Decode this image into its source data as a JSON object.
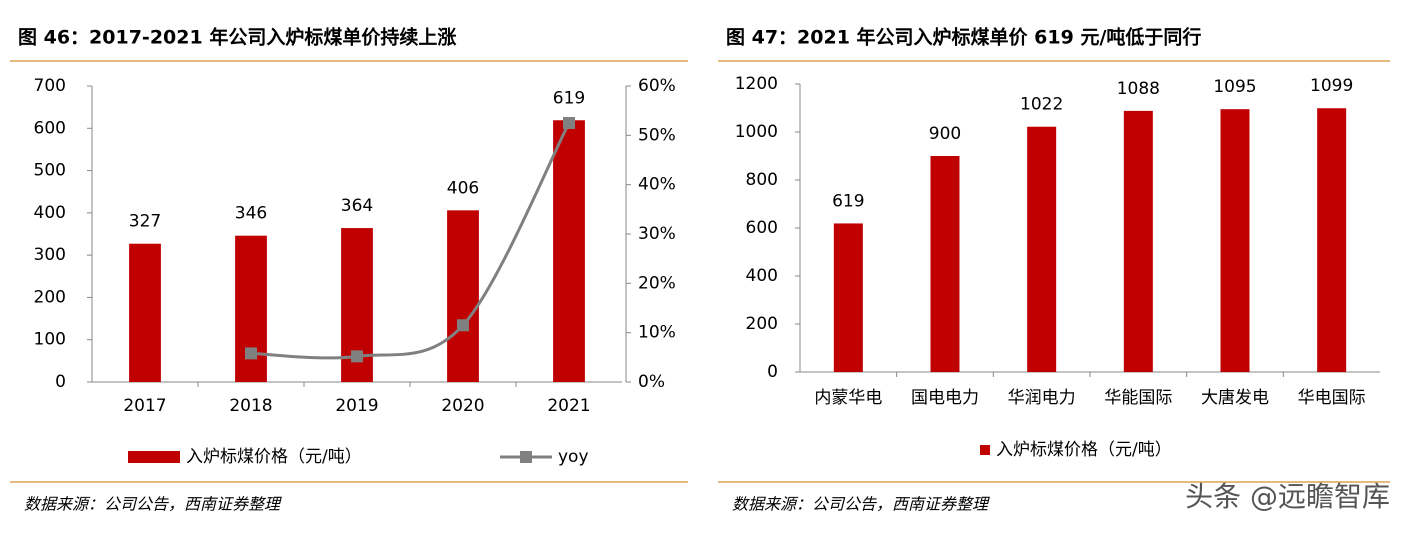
{
  "chart_data": [
    {
      "type": "combo",
      "title": "图 46：2017-2021 年公司入炉标煤单价持续上涨",
      "categories": [
        "2017",
        "2018",
        "2019",
        "2020",
        "2021"
      ],
      "series": [
        {
          "name": "入炉标煤价格（元/吨）",
          "type": "bar",
          "color": "#c00000",
          "values": [
            327,
            346,
            364,
            406,
            619
          ]
        },
        {
          "name": "yoy",
          "type": "line",
          "axis": "y2",
          "color": "#808080",
          "values": [
            null,
            5.8,
            5.2,
            11.5,
            52.5
          ]
        }
      ],
      "ylim": [
        0,
        700
      ],
      "yticks": [
        0,
        100,
        200,
        300,
        400,
        500,
        600,
        700
      ],
      "y2lim": [
        0,
        60
      ],
      "y2ticks": [
        {
          "value": 0,
          "label": "0%"
        },
        {
          "value": 10,
          "label": "10%"
        },
        {
          "value": 20,
          "label": "20%"
        },
        {
          "value": 30,
          "label": "30%"
        },
        {
          "value": 40,
          "label": "40%"
        },
        {
          "value": 50,
          "label": "50%"
        },
        {
          "value": 60,
          "label": "60%"
        }
      ],
      "source": "数据来源：公司公告，西南证券整理"
    },
    {
      "type": "bar",
      "title": "图 47：2021 年公司入炉标煤单价 619 元/吨低于同行",
      "categories": [
        "内蒙华电",
        "国电电力",
        "华润电力",
        "华能国际",
        "大唐发电",
        "华电国际"
      ],
      "series": [
        {
          "name": "入炉标煤价格（元/吨）",
          "type": "bar",
          "color": "#c00000",
          "values": [
            619,
            900,
            1022,
            1088,
            1095,
            1099
          ]
        }
      ],
      "ylim": [
        0,
        1200
      ],
      "yticks": [
        0,
        200,
        400,
        600,
        800,
        1000,
        1200
      ],
      "source": "数据来源：公司公告，西南证券整理"
    }
  ],
  "watermark": "头条 @远瞻智库"
}
